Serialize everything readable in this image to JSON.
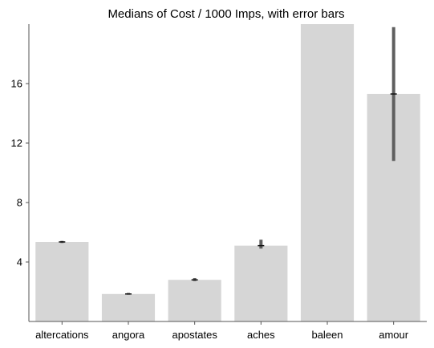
{
  "chart_data": {
    "type": "bar",
    "title": "Medians of Cost / 1000 Imps, with error bars",
    "xlabel": "",
    "ylabel": "",
    "categories": [
      "altercations",
      "angora",
      "apostates",
      "aches",
      "baleen",
      "amour"
    ],
    "values": [
      5.35,
      1.85,
      2.8,
      5.1,
      20.0,
      15.3
    ],
    "error_low": [
      5.28,
      1.8,
      2.72,
      4.9,
      20.0,
      10.8
    ],
    "error_high": [
      5.42,
      1.92,
      2.92,
      5.5,
      20.0,
      19.8
    ],
    "ylim": [
      0,
      20
    ],
    "yticks": [
      4,
      8,
      12,
      16
    ],
    "ytick_labels": [
      "4",
      "8",
      "12",
      "16"
    ],
    "grid": false,
    "colors": {
      "bar": "#d6d6d6",
      "error_bar": "#5f5f5f",
      "median_mark": "#111111",
      "axis": "#555555",
      "text": "#000000"
    }
  }
}
